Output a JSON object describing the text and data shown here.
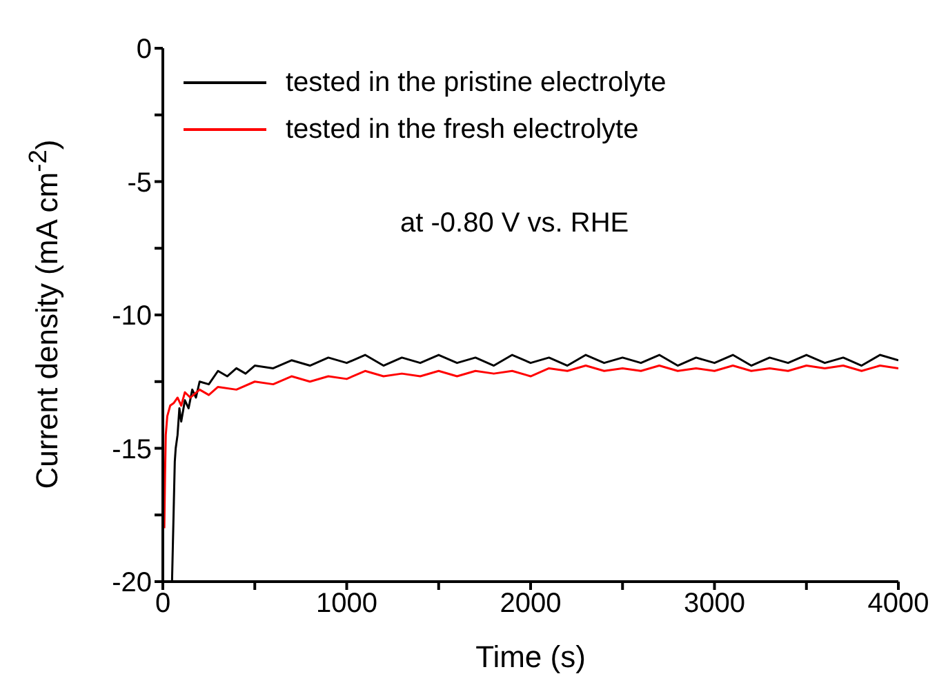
{
  "chart_data": {
    "type": "line",
    "xlabel": "Time (s)",
    "ylabel": "Current density (mA cm$^{-2}$)",
    "xlim": [
      0,
      4000
    ],
    "xticks": [
      0,
      {
        "value": 500,
        "label": null
      },
      1000,
      {
        "value": 1500,
        "label": null
      },
      2000,
      {
        "value": 2500,
        "label": null
      },
      3000,
      {
        "value": 3500,
        "label": null
      },
      4000
    ],
    "ylim": [
      -20,
      0
    ],
    "yticks": [
      -20,
      {
        "value": -17.5,
        "label": null
      },
      -15,
      {
        "value": -12.5,
        "label": null
      },
      -10,
      {
        "value": -7.5,
        "label": null
      },
      -5,
      {
        "value": -2.5,
        "label": null
      },
      0
    ],
    "grid": false,
    "legend": "top left",
    "marker": "none",
    "line_style": "solid",
    "annotations": [
      "at -0.80 V vs. RHE"
    ],
    "series": [
      {
        "name": "tested in the pristine electrolyte",
        "color": "#000000",
        "x": [
          50,
          55,
          60,
          65,
          70,
          80,
          90,
          100,
          120,
          140,
          160,
          180,
          200,
          250,
          300,
          350,
          400,
          450,
          500,
          600,
          700,
          800,
          900,
          1000,
          1100,
          1200,
          1300,
          1400,
          1500,
          1600,
          1700,
          1800,
          1900,
          2000,
          2100,
          2200,
          2300,
          2400,
          2500,
          2600,
          2700,
          2800,
          2900,
          3000,
          3100,
          3200,
          3300,
          3400,
          3500,
          3600,
          3700,
          3800,
          3900,
          4000
        ],
        "values": [
          -20,
          -18.5,
          -17,
          -15.5,
          -15,
          -14.5,
          -13.5,
          -14,
          -13.2,
          -13.5,
          -12.8,
          -13.1,
          -12.5,
          -12.6,
          -12.1,
          -12.3,
          -12,
          -12.2,
          -11.9,
          -12,
          -11.7,
          -11.9,
          -11.6,
          -11.8,
          -11.5,
          -11.9,
          -11.6,
          -11.8,
          -11.5,
          -11.8,
          -11.6,
          -11.9,
          -11.5,
          -11.8,
          -11.6,
          -11.9,
          -11.5,
          -11.8,
          -11.6,
          -11.8,
          -11.5,
          -11.9,
          -11.6,
          -11.8,
          -11.5,
          -11.9,
          -11.6,
          -11.8,
          -11.5,
          -11.8,
          -11.6,
          -11.9,
          -11.5,
          -11.7
        ]
      },
      {
        "name": "tested in the fresh electrolyte",
        "color": "#ff0000",
        "x": [
          8,
          12,
          16,
          24,
          40,
          60,
          80,
          100,
          120,
          150,
          200,
          250,
          300,
          400,
          500,
          600,
          700,
          800,
          900,
          1000,
          1100,
          1200,
          1300,
          1400,
          1500,
          1600,
          1700,
          1800,
          1900,
          2000,
          2100,
          2200,
          2300,
          2400,
          2500,
          2600,
          2700,
          2800,
          2900,
          3000,
          3100,
          3200,
          3300,
          3400,
          3500,
          3600,
          3700,
          3800,
          3900,
          4000
        ],
        "values": [
          -18,
          -16,
          -14.5,
          -13.8,
          -13.4,
          -13.3,
          -13.1,
          -13.4,
          -12.9,
          -13.1,
          -12.8,
          -13,
          -12.7,
          -12.8,
          -12.5,
          -12.6,
          -12.3,
          -12.5,
          -12.3,
          -12.4,
          -12.1,
          -12.3,
          -12.2,
          -12.3,
          -12.1,
          -12.3,
          -12.1,
          -12.2,
          -12.1,
          -12.3,
          -12,
          -12.1,
          -11.9,
          -12.1,
          -12,
          -12.1,
          -11.9,
          -12.1,
          -12,
          -12.1,
          -11.9,
          -12.1,
          -12,
          -12.1,
          -11.9,
          -12,
          -11.9,
          -12.1,
          -11.9,
          -12
        ]
      }
    ]
  }
}
